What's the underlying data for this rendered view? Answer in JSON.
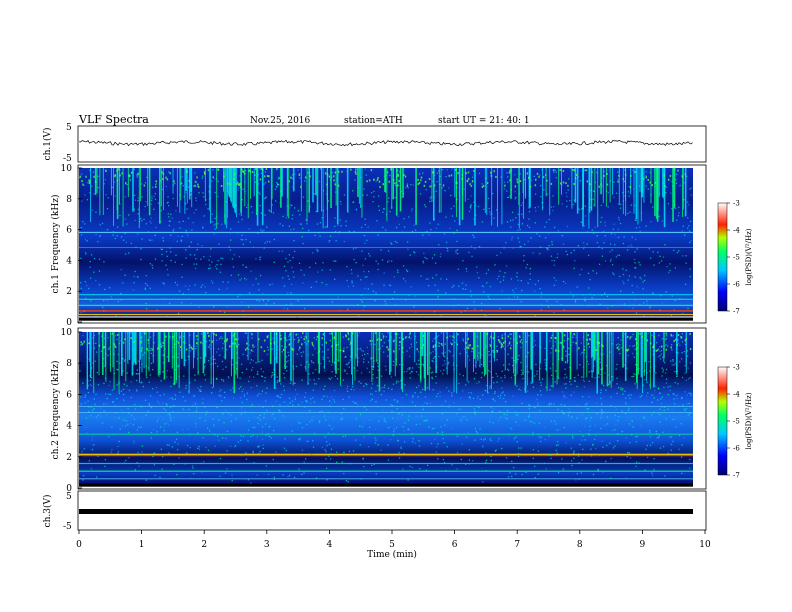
{
  "header": {
    "title": "VLF  Spectra",
    "date": "Nov.25, 2016",
    "station": "station=ATH",
    "start": "start  UT  =   21: 40: 1"
  },
  "colors": {
    "spec_low": "#00007a",
    "spec_mid": "#00c8ff",
    "spec_high": "#00ff66",
    "spec_peak": "#ff2a00",
    "trace": "#000000"
  },
  "chart_data": [
    {
      "type": "line",
      "panel": "ch1-waveform",
      "ylabel": "ch.1(V)",
      "ylim": [
        -5,
        5
      ],
      "y_ticks": [
        "5",
        "-5"
      ],
      "xlim": [
        0,
        10
      ],
      "note_values": "trace sits near 0 V with small fluctuations"
    },
    {
      "type": "heatmap",
      "panel": "ch1-spectrogram",
      "ylabel": "ch.1  Frequency  (kHz)",
      "ylim": [
        0,
        10
      ],
      "y_ticks": [
        "0",
        "2",
        "4",
        "6",
        "8",
        "10"
      ],
      "xlim": [
        0,
        10
      ],
      "colorbar": {
        "label": "log(PSD)(V²/Hz)",
        "range": [
          -7,
          -3
        ],
        "ticks": [
          "-3",
          "-4",
          "-5",
          "-6",
          "-7"
        ]
      }
    },
    {
      "type": "heatmap",
      "panel": "ch2-spectrogram",
      "ylabel": "ch.2  Frequency  (kHz)",
      "ylim": [
        0,
        10
      ],
      "y_ticks": [
        "0",
        "2",
        "4",
        "6",
        "8",
        "10"
      ],
      "xlim": [
        0,
        10
      ],
      "colorbar": {
        "label": "log(PSD)(V²/Hz)",
        "range": [
          -7,
          -3
        ],
        "ticks": [
          "-3",
          "-4",
          "-5",
          "-6",
          "-7"
        ]
      }
    },
    {
      "type": "line",
      "panel": "ch3-waveform",
      "ylabel": "ch.3(V)",
      "ylim": [
        -5,
        5
      ],
      "y_ticks": [
        "5",
        "-5"
      ],
      "xlim": [
        0,
        10
      ],
      "x_ticks": [
        "0",
        "1",
        "2",
        "3",
        "4",
        "5",
        "6",
        "7",
        "8",
        "9",
        "10"
      ],
      "xlabel": "Time  (min)"
    }
  ]
}
